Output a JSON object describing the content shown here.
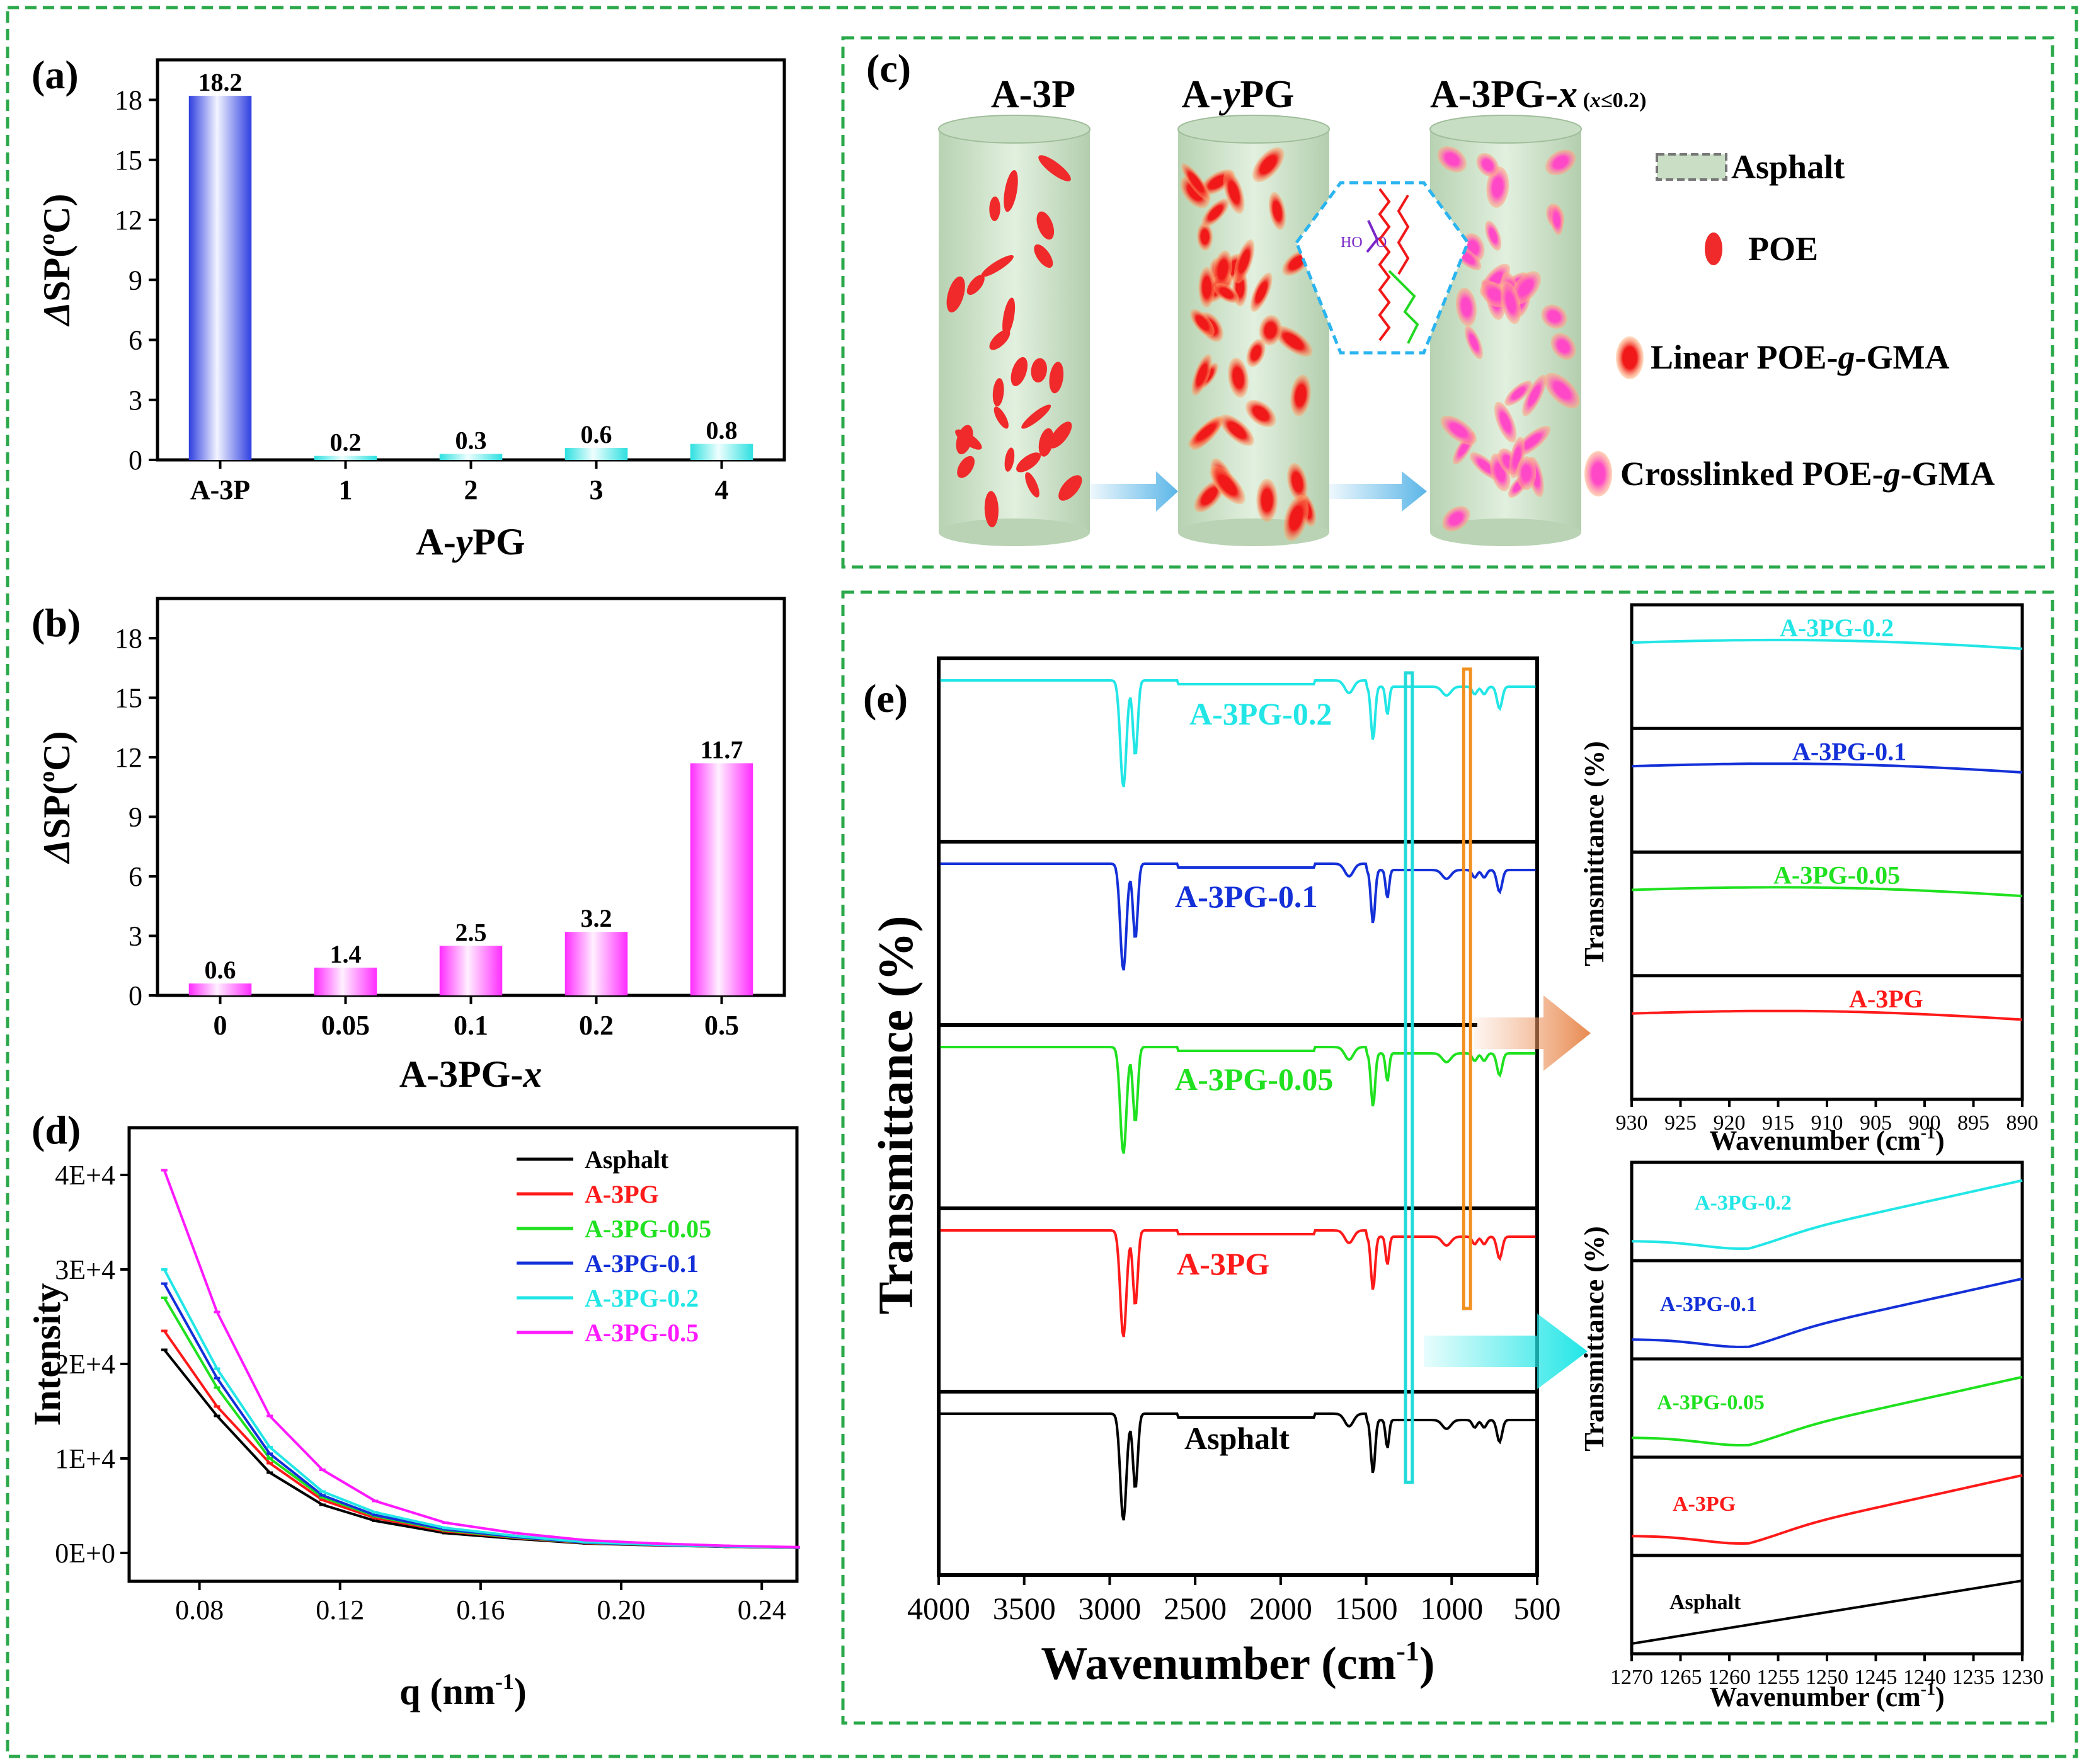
{
  "colors": {
    "frame": "#2aa84a",
    "asphalt": "#000000",
    "a3pg": "#ff1a1a",
    "g005": "#1fe11f",
    "g01": "#1430d8",
    "g02": "#22e6e6",
    "g05": "#ff1aff",
    "bar_blue": "#3546e6",
    "bar_cyan": "#38e4e4",
    "bar_magenta": "#ff3bff",
    "cylinder": "#d3e6cf",
    "poe_red": "#f02a2a",
    "crosslinked_pink": "#ff4ec9",
    "arrow_blue": "#5bb6e8",
    "arrow_orange": "#f0a878",
    "box_cyan": "#22dada",
    "box_orange": "#f29020"
  },
  "chart_data": [
    {
      "id": "a",
      "panel_label": "(a)",
      "type": "bar",
      "categories": [
        "A-3P",
        "1",
        "2",
        "3",
        "4"
      ],
      "values": [
        18.2,
        0.2,
        0.3,
        0.6,
        0.8
      ],
      "value_labels": [
        "18.2",
        "0.2",
        "0.3",
        "0.6",
        "0.8"
      ],
      "xlabel_parts": [
        "A-",
        "y",
        "PG"
      ],
      "ylabel_parts": [
        "Δ",
        "SP(",
        "o",
        "C)"
      ],
      "ylim": [
        0,
        20
      ],
      "yticks": [
        "0",
        "3",
        "6",
        "9",
        "12",
        "15",
        "18"
      ],
      "ytick_values": [
        0,
        3,
        6,
        9,
        12,
        15,
        18
      ]
    },
    {
      "id": "b",
      "panel_label": "(b)",
      "type": "bar",
      "categories": [
        "0",
        "0.05",
        "0.1",
        "0.2",
        "0.5"
      ],
      "values": [
        0.6,
        1.4,
        2.5,
        3.2,
        11.7
      ],
      "value_labels": [
        "0.6",
        "1.4",
        "2.5",
        "3.2",
        "11.7"
      ],
      "xlabel_parts": [
        "A-3PG-",
        "x"
      ],
      "ylabel_parts": [
        "Δ",
        "SP(",
        "o",
        "C)"
      ],
      "ylim": [
        0,
        20
      ],
      "yticks": [
        "0",
        "3",
        "6",
        "9",
        "12",
        "15",
        "18"
      ],
      "ytick_values": [
        0,
        3,
        6,
        9,
        12,
        15,
        18
      ]
    },
    {
      "id": "d",
      "panel_label": "(d)",
      "type": "line",
      "xlabel_parts": [
        "q (nm",
        "-1",
        ")"
      ],
      "ylabel": "Intensity",
      "xlim": [
        0.06,
        0.25
      ],
      "ylim": [
        -3000,
        45000
      ],
      "xticks": [
        "0.08",
        "0.12",
        "0.16",
        "0.20",
        "0.24"
      ],
      "xtick_values": [
        0.08,
        0.12,
        0.16,
        0.2,
        0.24
      ],
      "yticks": [
        "0E+0",
        "1E+4",
        "2E+4",
        "3E+4",
        "4E+4"
      ],
      "ytick_values": [
        0,
        10000,
        20000,
        30000,
        40000
      ],
      "x": [
        0.07,
        0.085,
        0.1,
        0.115,
        0.13,
        0.15,
        0.17,
        0.19,
        0.21,
        0.23,
        0.25
      ],
      "series": [
        {
          "name": "Asphalt",
          "values": [
            21500,
            14500,
            8500,
            5100,
            3400,
            2100,
            1500,
            1000,
            800,
            650,
            550
          ]
        },
        {
          "name": "A-3PG",
          "values": [
            23500,
            15500,
            9500,
            5600,
            3700,
            2300,
            1600,
            1050,
            820,
            660,
            560
          ]
        },
        {
          "name": "A-3PG-0.05",
          "values": [
            27000,
            17500,
            10000,
            5900,
            3900,
            2400,
            1650,
            1080,
            840,
            670,
            570
          ]
        },
        {
          "name": "A-3PG-0.1",
          "values": [
            28500,
            18500,
            10500,
            6100,
            4000,
            2500,
            1700,
            1100,
            850,
            680,
            580
          ]
        },
        {
          "name": "A-3PG-0.2",
          "values": [
            30000,
            19500,
            11200,
            6500,
            4300,
            2650,
            1800,
            1150,
            880,
            700,
            590
          ]
        },
        {
          "name": "A-3PG-0.5",
          "values": [
            40500,
            25500,
            14500,
            8800,
            5500,
            3200,
            2100,
            1350,
            1000,
            760,
            620
          ]
        }
      ]
    },
    {
      "id": "e",
      "panel_label": "(e)",
      "type": "line",
      "xlabel_parts": [
        "Wavenumber (cm",
        "-1",
        ")"
      ],
      "ylabel": "Transmittance  (%)",
      "xlim": [
        4000,
        500
      ],
      "xticks": [
        "4000",
        "3500",
        "3000",
        "2500",
        "2000",
        "1500",
        "1000",
        "500"
      ],
      "xtick_values": [
        4000,
        3500,
        3000,
        2500,
        2000,
        1500,
        1000,
        500
      ],
      "highlight_cyan_cm": [
        1270,
        1230
      ],
      "highlight_orange_cm": [
        930,
        890
      ],
      "series": [
        {
          "name": "A-3PG-0.2",
          "label": "A-3PG-0.2"
        },
        {
          "name": "A-3PG-0.1",
          "label": "A-3PG-0.1"
        },
        {
          "name": "A-3PG-0.05",
          "label": "A-3PG-0.05"
        },
        {
          "name": "A-3PG",
          "label": "A-3PG"
        },
        {
          "name": "Asphalt",
          "label": "Asphalt"
        }
      ]
    },
    {
      "id": "e_inset_top",
      "type": "line",
      "ylabel": "Transmittance (%)",
      "xlabel_parts": [
        "Wavenumber (cm",
        "-1",
        ")"
      ],
      "xlim": [
        930,
        890
      ],
      "xticks": [
        "930",
        "925",
        "920",
        "915",
        "910",
        "905",
        "900",
        "895",
        "890"
      ],
      "xtick_values": [
        930,
        925,
        920,
        915,
        910,
        905,
        900,
        895,
        890
      ],
      "series": [
        {
          "name": "A-3PG-0.2",
          "label": "A-3PG-0.2"
        },
        {
          "name": "A-3PG-0.1",
          "label": "A-3PG-0.1"
        },
        {
          "name": "A-3PG-0.05",
          "label": "A-3PG-0.05"
        },
        {
          "name": "A-3PG",
          "label": "A-3PG"
        }
      ]
    },
    {
      "id": "e_inset_bottom",
      "type": "line",
      "ylabel": "Transmittance (%)",
      "xlabel_parts": [
        "Wavenumber (cm",
        "-1",
        ")"
      ],
      "xlim": [
        1270,
        1230
      ],
      "xticks": [
        "1270",
        "1265",
        "1260",
        "1255",
        "1250",
        "1245",
        "1240",
        "1235",
        "1230"
      ],
      "xtick_values": [
        1270,
        1265,
        1260,
        1255,
        1250,
        1245,
        1240,
        1235,
        1230
      ],
      "series": [
        {
          "name": "A-3PG-0.2",
          "label": "A-3PG-0.2"
        },
        {
          "name": "A-3PG-0.1",
          "label": "A-3PG-0.1"
        },
        {
          "name": "A-3PG-0.05",
          "label": "A-3PG-0.05"
        },
        {
          "name": "A-3PG",
          "label": "A-3PG"
        },
        {
          "name": "Asphalt",
          "label": "Asphalt"
        }
      ]
    }
  ],
  "schematic": {
    "panel_label": "(c)",
    "cylinder_labels": {
      "first": "A-3P",
      "second_parts": [
        "A-",
        "y",
        "PG"
      ],
      "third_parts": [
        "A-3PG-",
        "x",
        " (",
        "x",
        "≤0.2)"
      ]
    },
    "molecule_labels": [
      "HO",
      "O"
    ],
    "legend": {
      "asphalt": "Asphalt",
      "poe": "POE",
      "linear_parts": [
        "Linear POE-",
        "g",
        "-GMA"
      ],
      "crosslinked_parts": [
        "Crosslinked POE-",
        "g",
        "-GMA"
      ]
    }
  }
}
